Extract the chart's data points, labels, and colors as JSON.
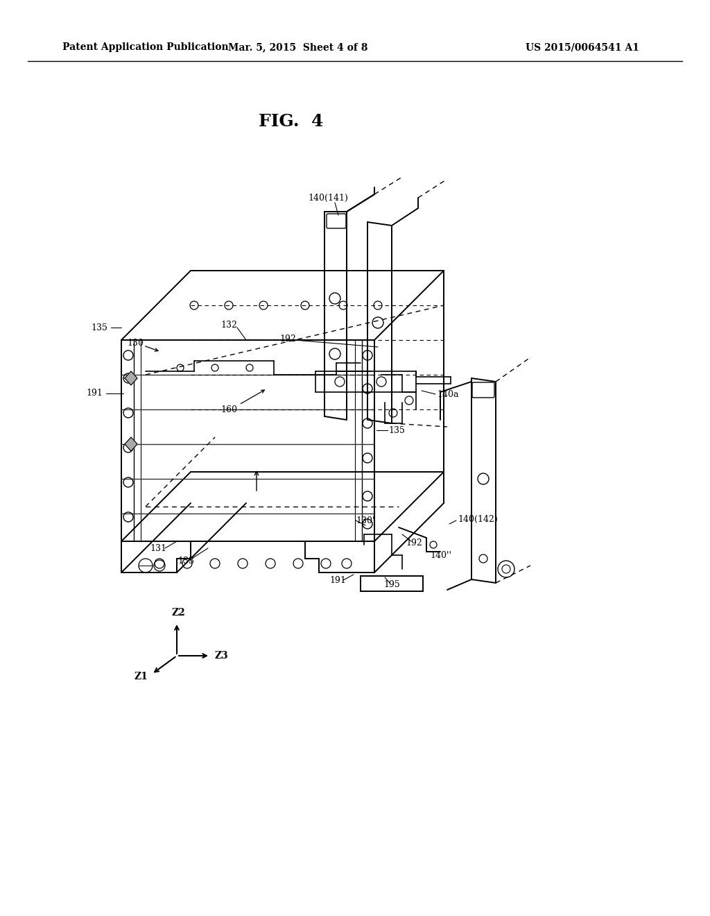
{
  "bg_color": "#ffffff",
  "text_color": "#000000",
  "header_left": "Patent Application Publication",
  "header_mid": "Mar. 5, 2015  Sheet 4 of 8",
  "header_right": "US 2015/0064541 A1",
  "fig_label": "FIG.  4"
}
